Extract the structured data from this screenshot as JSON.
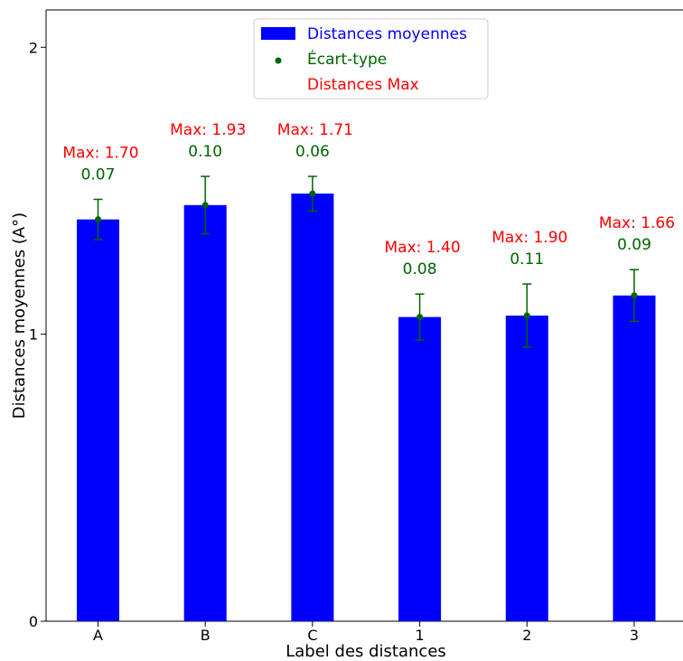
{
  "chart_data": {
    "type": "bar",
    "title": "",
    "xlabel": "Label des distances",
    "ylabel": "Distances moyennes (A°)",
    "ylim": [
      0,
      2.13
    ],
    "yticks": [
      0,
      1,
      2
    ],
    "ytick_labels": [
      "0",
      "1",
      "2"
    ],
    "categories": [
      "A",
      "B",
      "C",
      "1",
      "2",
      "3"
    ],
    "series": [
      {
        "name": "Distances moyennes",
        "color": "#0000ff",
        "values": [
          1.4,
          1.45,
          1.49,
          1.06,
          1.065,
          1.135
        ]
      }
    ],
    "error_bars": {
      "name": "Écart-type",
      "color": "#006400",
      "values": [
        0.07,
        0.1,
        0.06,
        0.08,
        0.11,
        0.09
      ],
      "labels": [
        "0.07",
        "0.10",
        "0.06",
        "0.08",
        "0.11",
        "0.09"
      ]
    },
    "max_annotations": {
      "name": "Distances Max",
      "color": "#ff0000",
      "values": [
        1.7,
        1.93,
        1.71,
        1.4,
        1.9,
        1.66
      ],
      "labels": [
        "Max: 1.70",
        "Max: 1.93",
        "Max: 1.71",
        "Max: 1.40",
        "Max: 1.90",
        "Max: 1.66"
      ]
    },
    "legend": {
      "position": "top-center",
      "entries": [
        {
          "label": "Distances moyennes",
          "color": "#0000ff",
          "marker": "bar"
        },
        {
          "label": "Écart-type",
          "color": "#006400",
          "marker": "dot"
        },
        {
          "label": "Distances Max",
          "color": "#ff0000",
          "marker": "none"
        }
      ]
    },
    "grid": false
  }
}
